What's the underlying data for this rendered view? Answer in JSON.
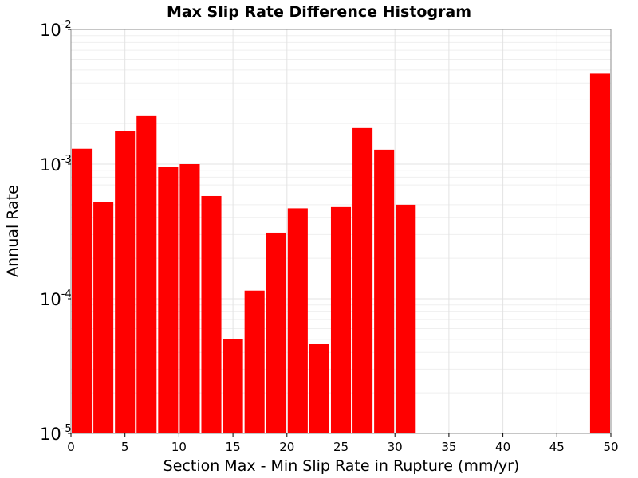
{
  "chart_data": {
    "type": "bar",
    "title": "Max Slip Rate Difference Histogram",
    "xlabel": "Section Max - Min Slip Rate in Rupture (mm/yr)",
    "ylabel": "Annual Rate",
    "xlim": [
      0,
      50
    ],
    "ylim": [
      1e-05,
      0.01
    ],
    "yscale": "log",
    "bar_width": 2,
    "bar_color": "#ff0000",
    "grid": true,
    "x_ticks": [
      "0",
      "5",
      "10",
      "15",
      "20",
      "25",
      "30",
      "35",
      "40",
      "45",
      "50"
    ],
    "x_tick_values": [
      0,
      5,
      10,
      15,
      20,
      25,
      30,
      35,
      40,
      45,
      50
    ],
    "y_ticks": [
      {
        "base": "10",
        "exp": "-5",
        "value": 1e-05
      },
      {
        "base": "10",
        "exp": "-4",
        "value": 0.0001
      },
      {
        "base": "10",
        "exp": "-3",
        "value": 0.001
      },
      {
        "base": "10",
        "exp": "-2",
        "value": 0.01
      }
    ],
    "x": [
      1,
      3,
      5,
      7,
      9,
      11,
      13,
      15,
      17,
      19,
      21,
      23,
      25,
      27,
      29,
      31,
      49
    ],
    "values": [
      0.0013,
      0.00052,
      0.00175,
      0.0023,
      0.00095,
      0.001,
      0.00058,
      5e-05,
      0.000115,
      0.00031,
      0.00047,
      4.6e-05,
      0.00048,
      0.00185,
      0.00128,
      0.0005,
      0.0047
    ]
  }
}
